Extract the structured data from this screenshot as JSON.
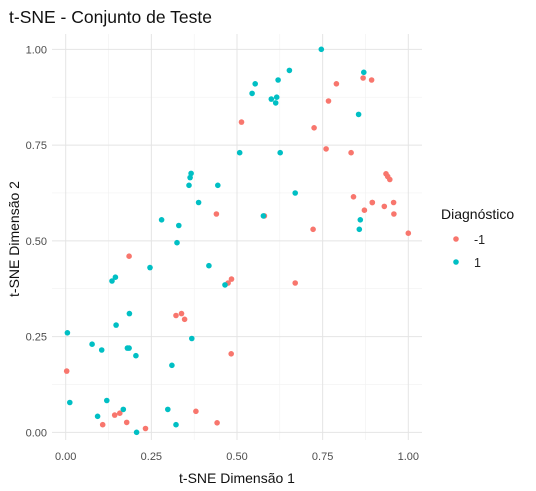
{
  "chart_data": {
    "type": "scatter",
    "title": "t-SNE - Conjunto de Teste",
    "xlabel": "t-SNE Dimensão 1",
    "ylabel": "t-SNE Dimensão 2",
    "xlim": [
      -0.04,
      1.04
    ],
    "ylim": [
      -0.02,
      1.04
    ],
    "x_ticks": [
      0.0,
      0.25,
      0.5,
      0.75,
      1.0
    ],
    "y_ticks": [
      0.0,
      0.25,
      0.5,
      0.75,
      1.0
    ],
    "x_tick_labels": [
      "0.00",
      "0.25",
      "0.50",
      "0.75",
      "1.00"
    ],
    "y_tick_labels": [
      "0.00",
      "0.25",
      "0.50",
      "0.75",
      "1.00"
    ],
    "grid": true,
    "legend": {
      "title": "Diagnóstico",
      "position": "right"
    },
    "series": [
      {
        "name": "-1",
        "color": "#F8766D",
        "points": [
          [
            0.003,
            0.16
          ],
          [
            0.108,
            0.02
          ],
          [
            0.143,
            0.045
          ],
          [
            0.158,
            0.05
          ],
          [
            0.178,
            0.026
          ],
          [
            0.233,
            0.01
          ],
          [
            0.185,
            0.46
          ],
          [
            0.322,
            0.305
          ],
          [
            0.338,
            0.31
          ],
          [
            0.347,
            0.295
          ],
          [
            0.38,
            0.055
          ],
          [
            0.442,
            0.025
          ],
          [
            0.483,
            0.205
          ],
          [
            0.44,
            0.57
          ],
          [
            0.484,
            0.4
          ],
          [
            0.474,
            0.39
          ],
          [
            0.513,
            0.81
          ],
          [
            0.58,
            0.565
          ],
          [
            0.67,
            0.39
          ],
          [
            0.722,
            0.53
          ],
          [
            0.725,
            0.795
          ],
          [
            0.76,
            0.74
          ],
          [
            0.767,
            0.865
          ],
          [
            0.79,
            0.91
          ],
          [
            0.833,
            0.73
          ],
          [
            0.868,
            0.925
          ],
          [
            0.893,
            0.92
          ],
          [
            0.84,
            0.615
          ],
          [
            0.872,
            0.58
          ],
          [
            0.895,
            0.6
          ],
          [
            0.93,
            0.59
          ],
          [
            0.935,
            0.675
          ],
          [
            0.94,
            0.668
          ],
          [
            0.946,
            0.66
          ],
          [
            0.958,
            0.57
          ],
          [
            0.957,
            0.6
          ],
          [
            0.895,
            0.6
          ],
          [
            1.0,
            0.52
          ]
        ]
      },
      {
        "name": "1",
        "color": "#00BFC4",
        "points": [
          [
            0.005,
            0.26
          ],
          [
            0.012,
            0.078
          ],
          [
            0.077,
            0.23
          ],
          [
            0.093,
            0.042
          ],
          [
            0.105,
            0.215
          ],
          [
            0.12,
            0.083
          ],
          [
            0.135,
            0.395
          ],
          [
            0.145,
            0.405
          ],
          [
            0.147,
            0.28
          ],
          [
            0.168,
            0.06
          ],
          [
            0.18,
            0.22
          ],
          [
            0.185,
            0.22
          ],
          [
            0.186,
            0.31
          ],
          [
            0.205,
            0.2
          ],
          [
            0.207,
            0.0
          ],
          [
            0.246,
            0.43
          ],
          [
            0.28,
            0.555
          ],
          [
            0.298,
            0.06
          ],
          [
            0.31,
            0.175
          ],
          [
            0.322,
            0.02
          ],
          [
            0.325,
            0.495
          ],
          [
            0.33,
            0.54
          ],
          [
            0.363,
            0.665
          ],
          [
            0.366,
            0.676
          ],
          [
            0.36,
            0.645
          ],
          [
            0.368,
            0.245
          ],
          [
            0.388,
            0.6
          ],
          [
            0.418,
            0.435
          ],
          [
            0.444,
            0.645
          ],
          [
            0.465,
            0.385
          ],
          [
            0.508,
            0.73
          ],
          [
            0.544,
            0.885
          ],
          [
            0.553,
            0.91
          ],
          [
            0.577,
            0.565
          ],
          [
            0.6,
            0.87
          ],
          [
            0.613,
            0.86
          ],
          [
            0.616,
            0.875
          ],
          [
            0.62,
            0.92
          ],
          [
            0.626,
            0.73
          ],
          [
            0.653,
            0.945
          ],
          [
            0.67,
            0.625
          ],
          [
            0.746,
            1.0
          ],
          [
            0.857,
            0.53
          ],
          [
            0.855,
            0.83
          ],
          [
            0.87,
            0.94
          ],
          [
            0.86,
            0.555
          ]
        ]
      }
    ]
  }
}
